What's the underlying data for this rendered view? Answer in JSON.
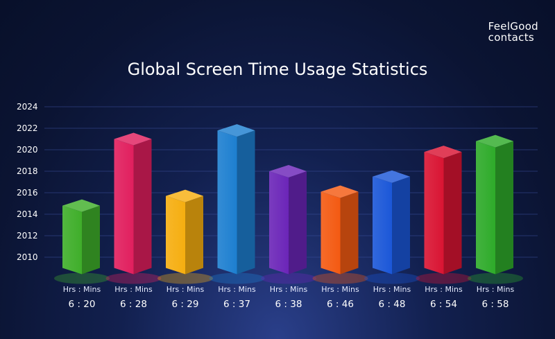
{
  "logo": {
    "line1": "FeelGood",
    "line2": "contacts"
  },
  "chart_data": {
    "type": "bar",
    "title": "Global Screen Time Usage Statistics",
    "xlabel": "",
    "ylabel": "",
    "ylim": [
      2009,
      2024
    ],
    "yticks": [
      "2024",
      "2022",
      "2020",
      "2018",
      "2016",
      "2014",
      "2012",
      "2010"
    ],
    "value_unit_label": "Hrs : Mins",
    "categories": [
      "6 : 20",
      "6 : 28",
      "6 : 29",
      "6 : 37",
      "6 : 38",
      "6 : 46",
      "6 : 48",
      "6 : 54",
      "6 : 58"
    ],
    "values": [
      2014.8,
      2021.0,
      2015.7,
      2021.8,
      2018.0,
      2016.1,
      2017.5,
      2019.8,
      2020.8
    ],
    "bar_colors": [
      "#3fae2a",
      "#e11f5e",
      "#f6ae10",
      "#1d7fd0",
      "#6b25b8",
      "#f45a12",
      "#1b57d8",
      "#d91433",
      "#2eab2a"
    ],
    "grid": true,
    "legend": "none"
  }
}
